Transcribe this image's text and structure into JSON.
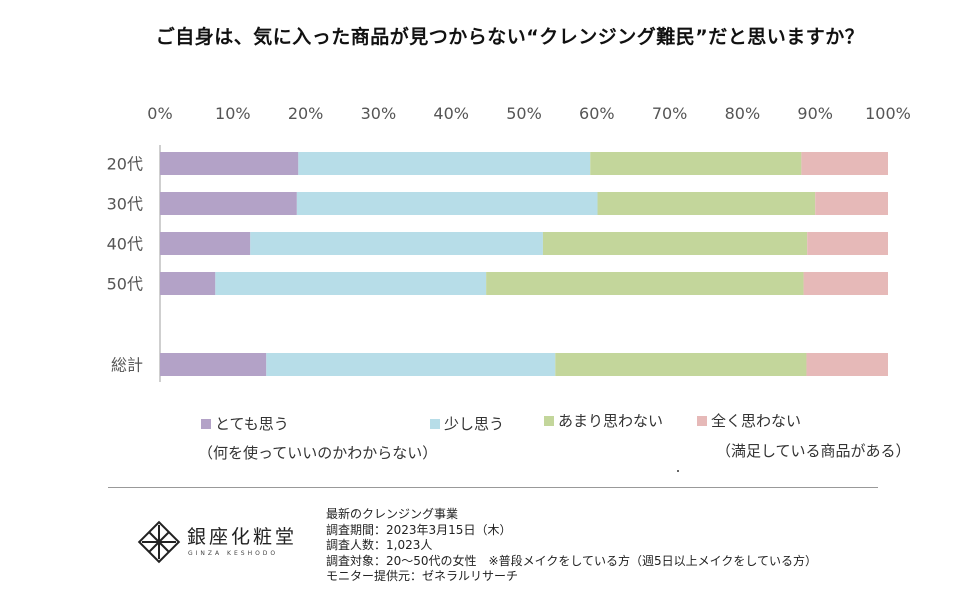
{
  "chart_data": {
    "type": "stacked-bar-horizontal",
    "title": "ご自身は、気に入った商品が見つからない“クレンジング難民”だと思いますか？",
    "xlim": [
      0,
      100
    ],
    "x_ticks": [
      "0%",
      "10%",
      "20%",
      "30%",
      "40%",
      "50%",
      "60%",
      "70%",
      "80%",
      "90%",
      "100%"
    ],
    "categories": [
      "20代",
      "30代",
      "40代",
      "50代",
      "総計"
    ],
    "series": [
      {
        "name": "とても思う",
        "color": "#b3a2c7",
        "values": [
          19.0,
          18.8,
          12.4,
          7.6,
          14.6
        ]
      },
      {
        "name": "少し思う",
        "color": "#b7dde8",
        "values": [
          40.1,
          41.3,
          40.2,
          37.2,
          39.7
        ]
      },
      {
        "name": "あまり思わない",
        "color": "#c3d69b",
        "values": [
          29.0,
          29.9,
          36.3,
          43.6,
          34.5
        ]
      },
      {
        "name": "全く思わない",
        "color": "#e6b9b8",
        "values": [
          11.9,
          10.0,
          11.1,
          11.6,
          11.2
        ]
      }
    ],
    "legend_notes": {
      "とても思う": "（何を使っていいのかわからない）",
      "全く思わない": "（満足している商品がある）"
    }
  },
  "footer": {
    "brand": "銀座化粧堂",
    "brand_roman": "GINZA KESHODO",
    "lines": [
      "最新のクレンジング事業",
      "調査期間：2023年3月15日（木）",
      "調査人数：1,023人",
      "調査対象：20～50代の女性　※普段メイクをしている方（週5日以上メイクをしている方）",
      "モニター提供元：ゼネラルリサーチ"
    ]
  }
}
